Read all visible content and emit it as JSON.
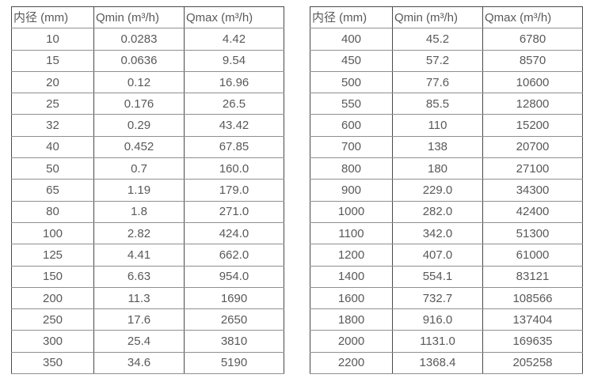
{
  "colors": {
    "background": "#ffffff",
    "text": "#595959",
    "border_vertical": "#4a4a4a",
    "border_horizontal": "#8f8f8f"
  },
  "tables": [
    {
      "name": "flow-table-left",
      "headers": [
        "内径 (mm)",
        "Qmin (m³/h)",
        "Qmax (m³/h)"
      ],
      "rows": [
        [
          "10",
          "0.0283",
          "4.42"
        ],
        [
          "15",
          "0.0636",
          "9.54"
        ],
        [
          "20",
          "0.12",
          "16.96"
        ],
        [
          "25",
          "0.176",
          "26.5"
        ],
        [
          "32",
          "0.29",
          "43.42"
        ],
        [
          "40",
          "0.452",
          "67.85"
        ],
        [
          "50",
          "0.7",
          "160.0"
        ],
        [
          "65",
          "1.19",
          "179.0"
        ],
        [
          "80",
          "1.8",
          "271.0"
        ],
        [
          "100",
          "2.82",
          "424.0"
        ],
        [
          "125",
          "4.41",
          "662.0"
        ],
        [
          "150",
          "6.63",
          "954.0"
        ],
        [
          "200",
          "11.3",
          "1690"
        ],
        [
          "250",
          "17.6",
          "2650"
        ],
        [
          "300",
          "25.4",
          "3810"
        ],
        [
          "350",
          "34.6",
          "5190"
        ]
      ]
    },
    {
      "name": "flow-table-right",
      "headers": [
        "内径 (mm)",
        "Qmin (m³/h)",
        "Qmax (m³/h)"
      ],
      "rows": [
        [
          "400",
          "45.2",
          "6780"
        ],
        [
          "450",
          "57.2",
          "8570"
        ],
        [
          "500",
          "77.6",
          "10600"
        ],
        [
          "550",
          "85.5",
          "12800"
        ],
        [
          "600",
          "110",
          "15200"
        ],
        [
          "700",
          "138",
          "20700"
        ],
        [
          "800",
          "180",
          "27100"
        ],
        [
          "900",
          "229.0",
          "34300"
        ],
        [
          "1000",
          "282.0",
          "42400"
        ],
        [
          "1100",
          "342.0",
          "51300"
        ],
        [
          "1200",
          "407.0",
          "61000"
        ],
        [
          "1400",
          "554.1",
          "83121"
        ],
        [
          "1600",
          "732.7",
          "108566"
        ],
        [
          "1800",
          "916.0",
          "137404"
        ],
        [
          "2000",
          "1131.0",
          "169635"
        ],
        [
          "2200",
          "1368.4",
          "205258"
        ]
      ]
    }
  ]
}
